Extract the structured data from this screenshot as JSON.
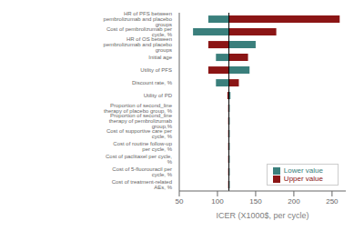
{
  "chart_data": {
    "type": "bar",
    "orientation": "horizontal",
    "xlabel": "ICER (X1000$, per cycle)",
    "categories": [
      "HR of PFS between pembrolizumab and placebo groups",
      "Cost of pembrolizumab per cycle, %",
      "HR of OS between pembrolizumab and placebo groups",
      "Initial age",
      "Utility of PFS",
      "Discount rate, %",
      "Utility of PD",
      "Proportion of second_line therapy of placebo group, %",
      "Proportion of second_line therapy of pembrolizumab group,%",
      "Cost of supportive care per cycle, %",
      "Cost of routine follow-up per cycle, %",
      "Cost of paclitaxel per cycle, %",
      "Cost of 5-fluorouracil per cycle, %",
      "Cost of treatment-related AEs, %"
    ],
    "series": [
      {
        "name": "Lower value",
        "color": "#3a7f7c",
        "values": [
          [
            88,
            115
          ],
          [
            68,
            115
          ],
          [
            115,
            150
          ],
          [
            98,
            115
          ],
          [
            115,
            142
          ],
          [
            98,
            115
          ],
          [
            115,
            117
          ],
          [
            115,
            116
          ],
          [
            115,
            116
          ],
          [
            115,
            116
          ],
          [
            115,
            116
          ],
          [
            115,
            116
          ],
          [
            115,
            116
          ],
          [
            115,
            116
          ]
        ]
      },
      {
        "name": "Upper value",
        "color": "#8b1515",
        "values": [
          [
            115,
            260
          ],
          [
            115,
            177
          ],
          [
            88,
            115
          ],
          [
            115,
            140
          ],
          [
            88,
            115
          ],
          [
            115,
            128
          ],
          [
            113,
            115
          ],
          [
            114,
            115
          ],
          [
            114,
            115
          ],
          [
            114,
            115
          ],
          [
            114,
            115
          ],
          [
            114,
            115
          ],
          [
            114,
            115
          ],
          [
            114,
            115
          ]
        ]
      }
    ],
    "baseline": 115,
    "xlim": [
      50,
      268
    ],
    "xticks": [
      50,
      100,
      150,
      200,
      250
    ],
    "legend": "lower right",
    "grid": false
  }
}
